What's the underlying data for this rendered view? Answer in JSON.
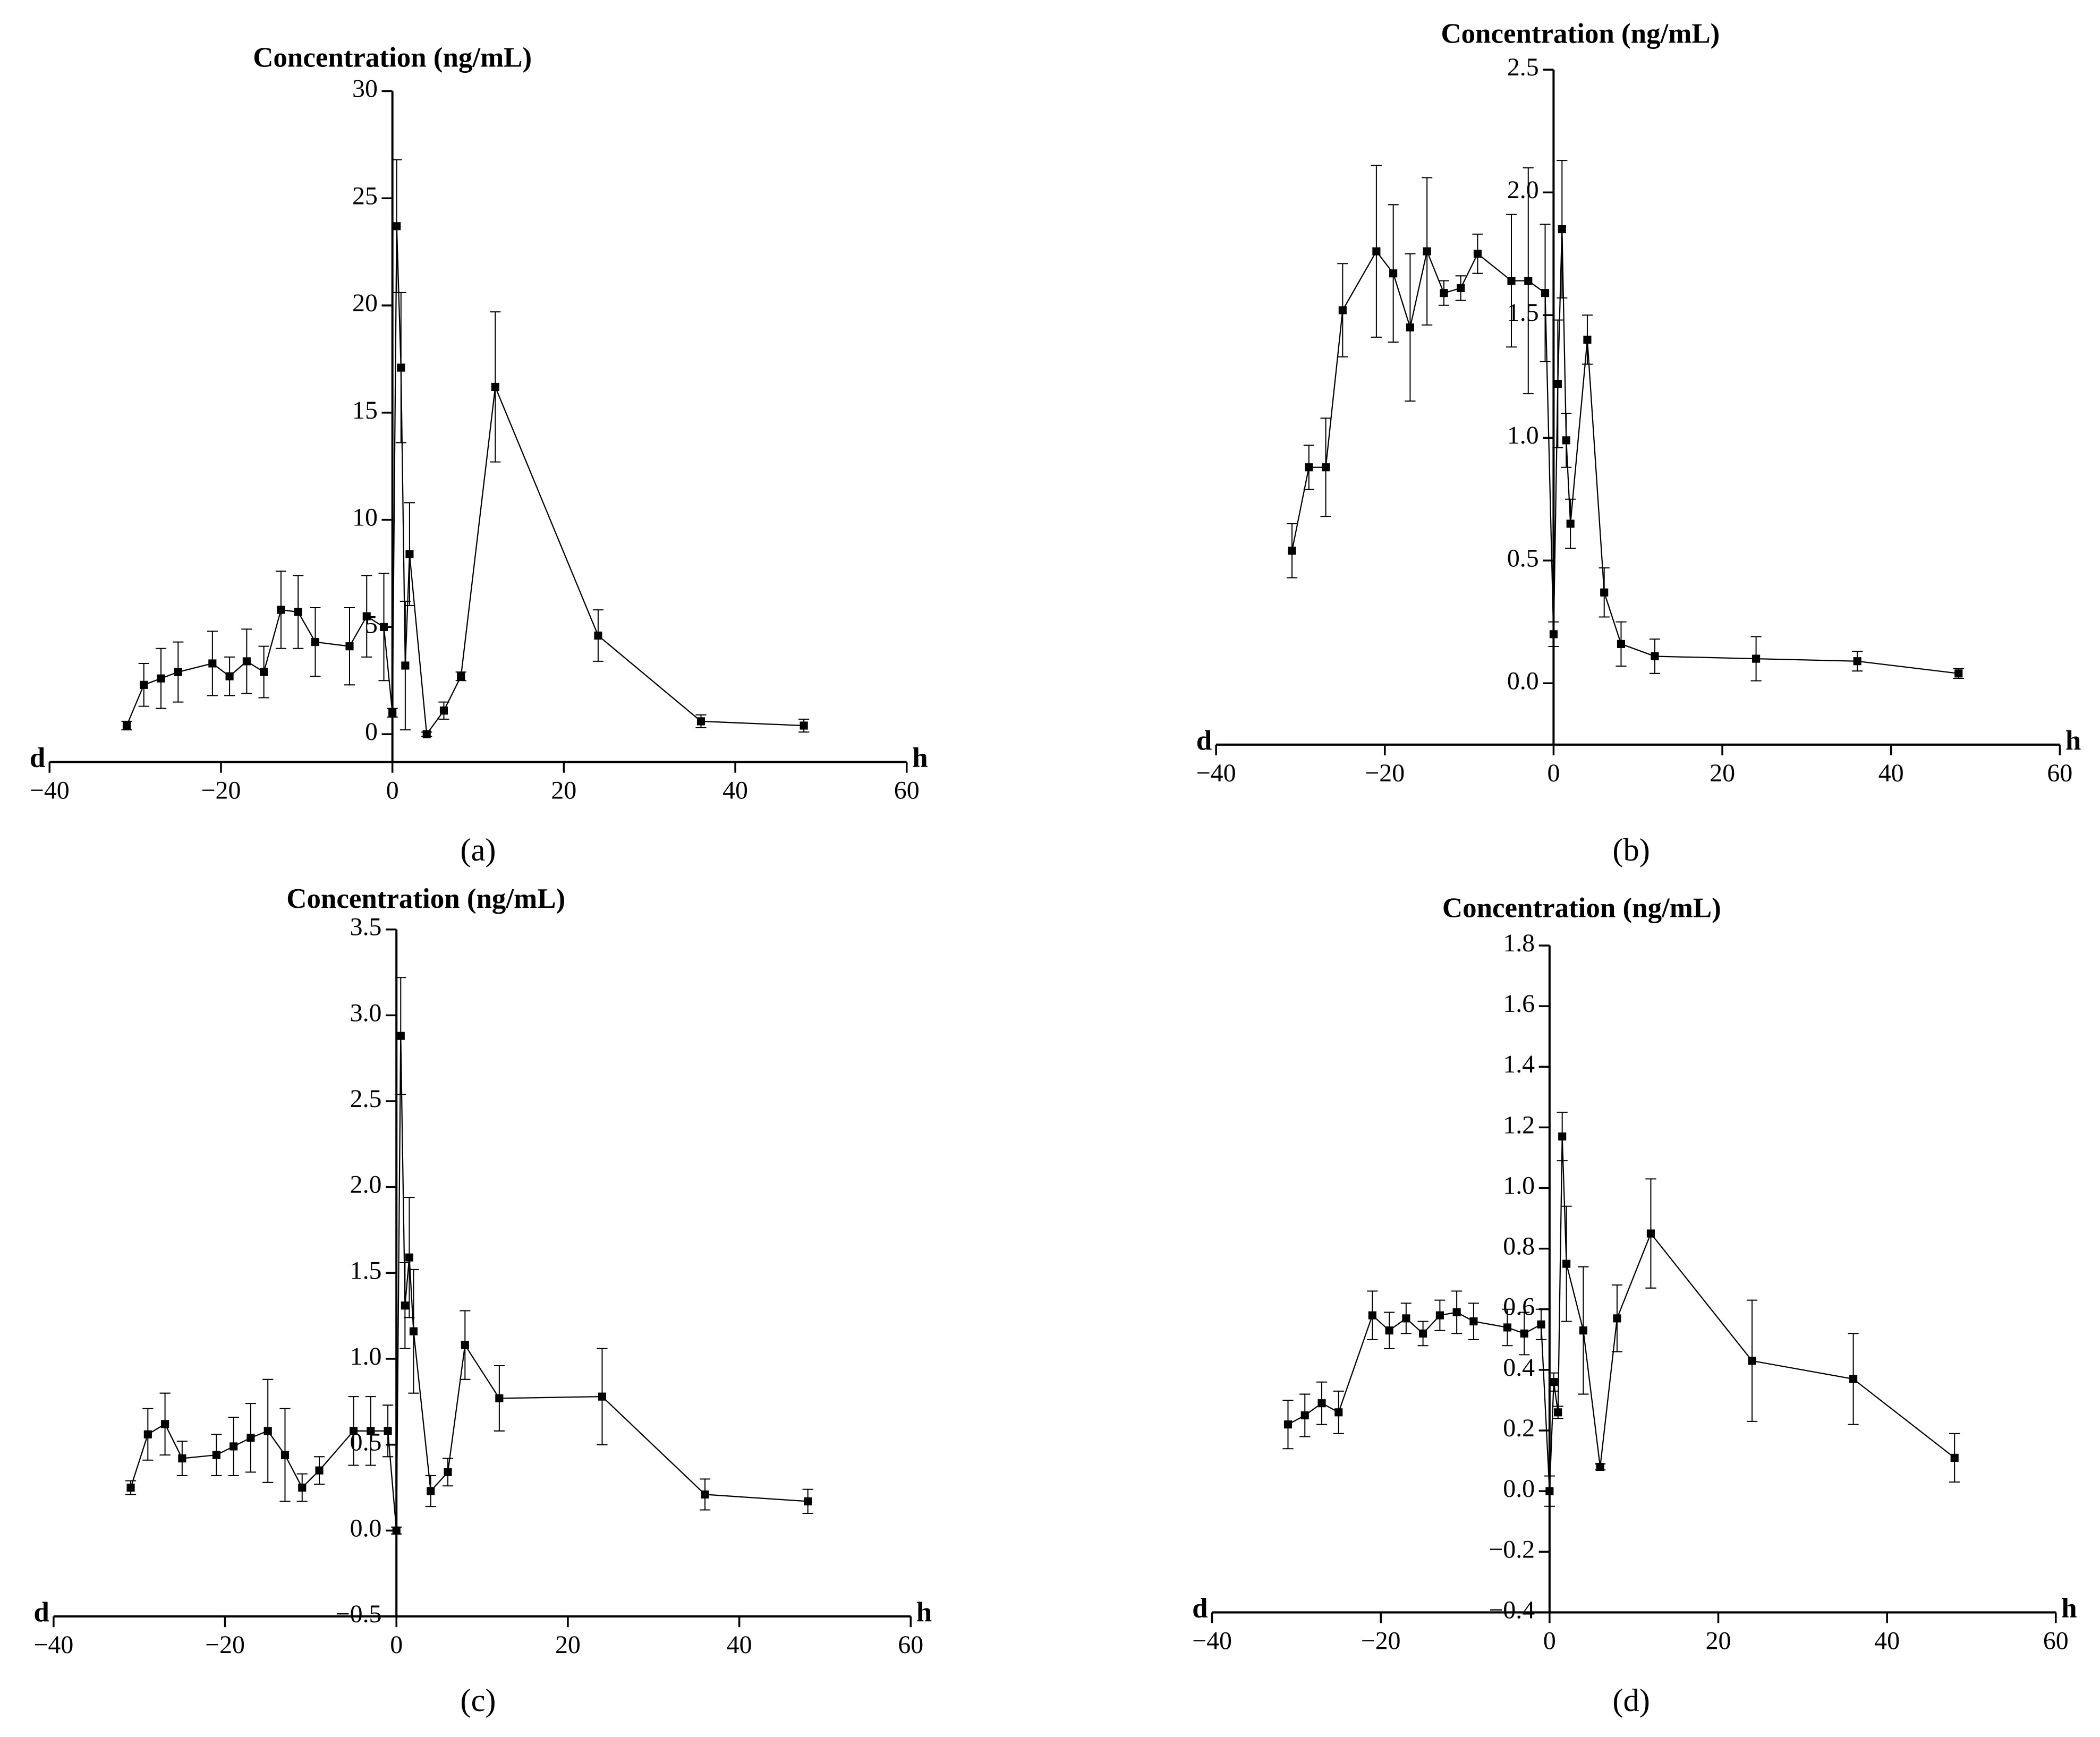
{
  "chart_data": [
    {
      "type": "line",
      "caption": "(a)",
      "y_label": "Concentration (ng/mL)",
      "x_label_left": "d",
      "x_label_right": "h",
      "x": [
        -31,
        -29,
        -27,
        -25,
        -21,
        -19,
        -17,
        -15,
        -13,
        -11,
        -9,
        -5,
        -3,
        -1,
        0,
        0.5,
        1,
        1.5,
        2,
        4,
        6,
        8,
        12,
        24,
        36,
        48
      ],
      "series": [
        {
          "color": "#000000",
          "values": [
            0.4,
            2.3,
            2.6,
            2.9,
            3.3,
            2.7,
            3.4,
            2.9,
            5.8,
            5.7,
            4.3,
            4.1,
            5.5,
            5.0,
            1.0,
            23.7,
            17.1,
            3.2,
            8.4,
            0,
            1.1,
            2.7,
            16.2,
            4.6,
            0.6,
            0.4
          ],
          "errors": [
            0.2,
            1.0,
            1.4,
            1.4,
            1.5,
            0.9,
            1.5,
            1.2,
            1.8,
            1.7,
            1.6,
            1.8,
            1.9,
            2.5,
            0.2,
            3.1,
            3.5,
            3.0,
            2.4,
            0.1,
            0.4,
            0.2,
            3.5,
            1.2,
            0.3,
            0.3
          ]
        }
      ],
      "xlim": [
        -40,
        60
      ],
      "xticks": [
        {
          "value": -40,
          "label": "−40"
        },
        {
          "value": -20,
          "label": "−20"
        },
        0,
        20,
        40,
        60
      ],
      "ylim": [
        -1.3,
        30
      ],
      "yticks": [
        0,
        5,
        10,
        15,
        20,
        25,
        30
      ]
    },
    {
      "type": "line",
      "caption": "(b)",
      "y_label": "Concentration (ng/mL)",
      "x_label_left": "d",
      "x_label_right": "h",
      "x": [
        -31,
        -29,
        -27,
        -25,
        -21,
        -19,
        -17,
        -15,
        -13,
        -11,
        -9,
        -5,
        -3,
        -1,
        0,
        0.5,
        1,
        1.5,
        2,
        4,
        6,
        8,
        12,
        24,
        36,
        48
      ],
      "series": [
        {
          "color": "#000000",
          "values": [
            0.54,
            0.88,
            0.88,
            1.52,
            1.76,
            1.67,
            1.45,
            1.76,
            1.59,
            1.61,
            1.75,
            1.64,
            1.64,
            1.59,
            0.2,
            1.22,
            1.85,
            0.99,
            0.65,
            1.4,
            0.37,
            0.16,
            0.11,
            0.1,
            0.09,
            0.04
          ],
          "errors": [
            0.11,
            0.09,
            0.2,
            0.19,
            0.35,
            0.28,
            0.3,
            0.3,
            0.05,
            0.05,
            0.08,
            0.27,
            0.46,
            0.28,
            0.05,
            0.26,
            0.28,
            0.11,
            0.1,
            0.1,
            0.1,
            0.09,
            0.07,
            0.09,
            0.04,
            0.02
          ]
        }
      ],
      "xlim": [
        -40,
        60
      ],
      "xticks": [
        {
          "value": -40,
          "label": "−40"
        },
        {
          "value": -20,
          "label": "−20"
        },
        0,
        20,
        40,
        60
      ],
      "ylim": [
        -0.25,
        2.5
      ],
      "yticks": [
        {
          "value": 0,
          "label": "0.0"
        },
        0.5,
        {
          "value": 1,
          "label": "1.0"
        },
        1.5,
        {
          "value": 2,
          "label": "2.0"
        },
        2.5
      ]
    },
    {
      "type": "line",
      "caption": "(c)",
      "y_label": "Concentration (ng/mL)",
      "x_label_left": "d",
      "x_label_right": "h",
      "x": [
        -31,
        -29,
        -27,
        -25,
        -21,
        -19,
        -17,
        -15,
        -13,
        -11,
        -9,
        -5,
        -3,
        -1,
        0,
        0.5,
        1,
        1.5,
        2,
        4,
        6,
        8,
        12,
        24,
        36,
        48
      ],
      "series": [
        {
          "color": "#000000",
          "values": [
            0.25,
            0.56,
            0.62,
            0.42,
            0.44,
            0.49,
            0.54,
            0.58,
            0.44,
            0.25,
            0.35,
            0.58,
            0.58,
            0.58,
            0.0,
            2.88,
            1.31,
            1.59,
            1.16,
            0.23,
            0.34,
            1.08,
            0.77,
            0.78,
            0.21,
            0.17
          ],
          "errors": [
            0.04,
            0.15,
            0.18,
            0.1,
            0.12,
            0.17,
            0.2,
            0.3,
            0.27,
            0.08,
            0.08,
            0.2,
            0.2,
            0.15,
            0.02,
            0.34,
            0.25,
            0.35,
            0.36,
            0.09,
            0.08,
            0.2,
            0.19,
            0.28,
            0.09,
            0.07
          ]
        }
      ],
      "xlim": [
        -40,
        60
      ],
      "xticks": [
        {
          "value": -40,
          "label": "−40"
        },
        {
          "value": -20,
          "label": "−20"
        },
        0,
        20,
        40,
        60
      ],
      "ylim": [
        -0.5,
        3.5
      ],
      "yticks": [
        {
          "value": -0.5,
          "label": "−0.5"
        },
        {
          "value": 0,
          "label": "0.0"
        },
        0.5,
        {
          "value": 1,
          "label": "1.0"
        },
        1.5,
        {
          "value": 2,
          "label": "2.0"
        },
        2.5,
        {
          "value": 3,
          "label": "3.0"
        },
        3.5
      ]
    },
    {
      "type": "line",
      "caption": "(d)",
      "y_label": "Concentration (ng/mL)",
      "x_label_left": "d",
      "x_label_right": "h",
      "x": [
        -31,
        -29,
        -27,
        -25,
        -21,
        -19,
        -17,
        -15,
        -13,
        -11,
        -9,
        -5,
        -3,
        -1,
        0,
        0.5,
        1,
        1.5,
        2,
        4,
        6,
        8,
        12,
        24,
        36,
        48
      ],
      "series": [
        {
          "color": "#000000",
          "values": [
            0.22,
            0.25,
            0.29,
            0.26,
            0.58,
            0.53,
            0.57,
            0.52,
            0.58,
            0.59,
            0.56,
            0.54,
            0.52,
            0.55,
            0.0,
            0.36,
            0.26,
            1.17,
            0.75,
            0.53,
            0.08,
            0.57,
            0.85,
            0.43,
            0.37,
            0.11
          ],
          "errors": [
            0.08,
            0.07,
            0.07,
            0.07,
            0.08,
            0.06,
            0.05,
            0.04,
            0.05,
            0.07,
            0.06,
            0.06,
            0.07,
            0.05,
            0.05,
            0.03,
            0.02,
            0.08,
            0.19,
            0.21,
            0.01,
            0.11,
            0.18,
            0.2,
            0.15,
            0.08
          ]
        }
      ],
      "xlim": [
        -40,
        60
      ],
      "xticks": [
        {
          "value": -40,
          "label": "−40"
        },
        {
          "value": -20,
          "label": "−20"
        },
        0,
        20,
        40,
        60
      ],
      "ylim": [
        -0.4,
        1.8
      ],
      "yticks": [
        {
          "value": -0.4,
          "label": "−0.4"
        },
        {
          "value": -0.2,
          "label": "−0.2"
        },
        {
          "value": 0,
          "label": "0.0"
        },
        0.2,
        0.4,
        0.6,
        0.8,
        {
          "value": 1,
          "label": "1.0"
        },
        1.2,
        1.4,
        1.6,
        1.8
      ]
    }
  ]
}
